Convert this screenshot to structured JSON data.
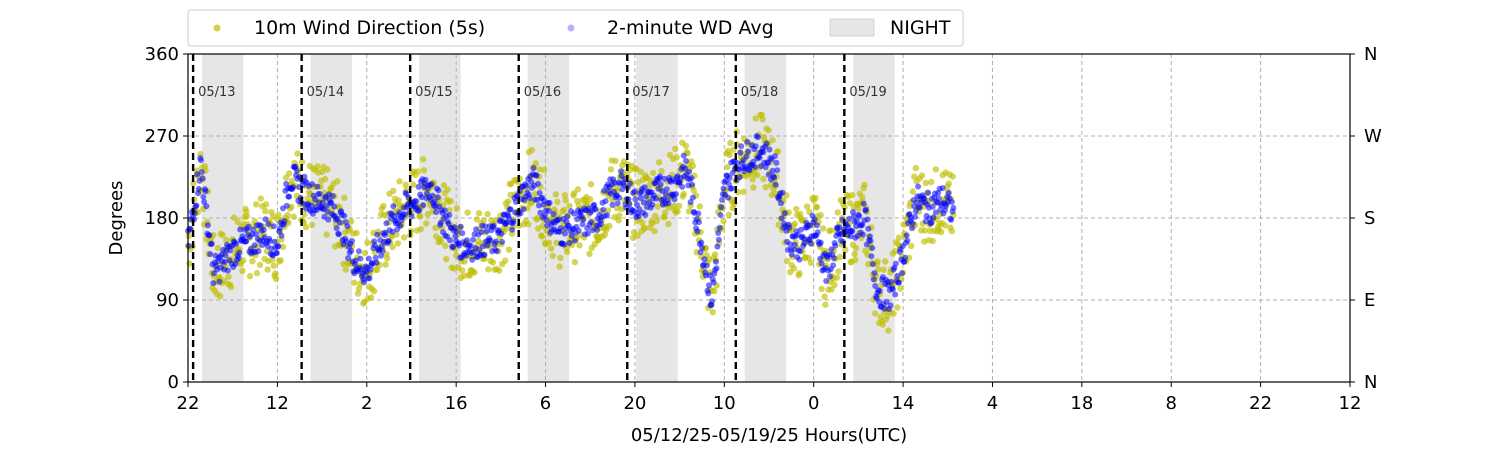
{
  "chart_data": {
    "type": "scatter",
    "xlabel": "05/12/25-05/19/25  Hours(UTC)",
    "ylabel": "Degrees",
    "ylim": [
      0,
      360
    ],
    "xlim_hours_from_start": [
      0,
      182
    ],
    "x_tick_labels": [
      "22",
      "12",
      "2",
      "16",
      "6",
      "20",
      "10",
      "0",
      "14",
      "4",
      "18",
      "8",
      "22",
      "12"
    ],
    "y_ticks": [
      0,
      90,
      180,
      270,
      360
    ],
    "y_tick_labels": [
      "0",
      "90",
      "180",
      "270",
      "360"
    ],
    "right_axis_labels": [
      "N",
      "E",
      "S",
      "W",
      "N"
    ],
    "grid": true,
    "legend": {
      "position": "top",
      "entries": [
        "10m Wind Direction (5s)",
        "2-minute WD Avg",
        "NIGHT"
      ]
    },
    "day_boundaries": [
      {
        "label": "05/13",
        "hour": 0.8
      },
      {
        "label": "05/14",
        "hour": 17.8
      },
      {
        "label": "05/15",
        "hour": 34.8
      },
      {
        "label": "05/16",
        "hour": 51.8
      },
      {
        "label": "05/17",
        "hour": 68.8
      },
      {
        "label": "05/18",
        "hour": 85.8
      },
      {
        "label": "05/19",
        "hour": 102.8
      }
    ],
    "night_periods": [
      [
        2.2,
        8.7
      ],
      [
        19.2,
        25.7
      ],
      [
        36.2,
        42.7
      ],
      [
        53.2,
        59.7
      ],
      [
        70.2,
        76.7
      ],
      [
        87.2,
        93.7
      ],
      [
        104.2,
        110.7
      ]
    ],
    "series": [
      {
        "name": "10m Wind Direction (5s)",
        "color": "#bfbf00",
        "hours": [
          0,
          2,
          4,
          6,
          8,
          10,
          12,
          14,
          16,
          18,
          20,
          22,
          24,
          26,
          28,
          30,
          32,
          34,
          36,
          38,
          40,
          42,
          44,
          46,
          48,
          50,
          52,
          54,
          56,
          58,
          60,
          62,
          64,
          66,
          68,
          70,
          72,
          74,
          76,
          78,
          80,
          82,
          84,
          86,
          88,
          90,
          92,
          94,
          96,
          98,
          100,
          102,
          104,
          106,
          108,
          110,
          112,
          114,
          116,
          118,
          120
        ],
        "values": [
          150,
          240,
          120,
          135,
          150,
          155,
          165,
          150,
          225,
          210,
          200,
          195,
          175,
          135,
          120,
          150,
          175,
          190,
          200,
          215,
          180,
          155,
          150,
          155,
          155,
          175,
          200,
          220,
          190,
          165,
          170,
          175,
          180,
          205,
          215,
          195,
          200,
          210,
          215,
          235,
          170,
          90,
          210,
          240,
          250,
          255,
          230,
          160,
          150,
          175,
          120,
          160,
          170,
          180,
          100,
          95,
          140,
          200,
          190,
          200,
          185
        ]
      },
      {
        "name": "2-minute WD Avg",
        "color": "#0000ff",
        "hours": [
          0,
          2,
          4,
          6,
          8,
          10,
          12,
          14,
          16,
          18,
          20,
          22,
          24,
          26,
          28,
          30,
          32,
          34,
          36,
          38,
          40,
          42,
          44,
          46,
          48,
          50,
          52,
          54,
          56,
          58,
          60,
          62,
          64,
          66,
          68,
          70,
          72,
          74,
          76,
          78,
          80,
          82,
          84,
          86,
          88,
          90,
          92,
          94,
          96,
          98,
          100,
          102,
          104,
          106,
          108,
          110,
          112,
          114,
          116,
          118,
          120
        ],
        "values": [
          150,
          240,
          120,
          135,
          150,
          155,
          165,
          150,
          225,
          210,
          200,
          195,
          175,
          135,
          120,
          150,
          175,
          190,
          200,
          215,
          180,
          155,
          150,
          155,
          155,
          175,
          200,
          220,
          190,
          165,
          170,
          175,
          180,
          205,
          215,
          195,
          200,
          210,
          215,
          235,
          170,
          90,
          210,
          240,
          250,
          255,
          230,
          160,
          150,
          175,
          120,
          160,
          170,
          180,
          100,
          95,
          140,
          200,
          190,
          200,
          185
        ]
      }
    ]
  },
  "colors": {
    "wind_5s": "#bfbf00",
    "wind_avg": "#0000ff",
    "night": "#e6e6e6"
  }
}
